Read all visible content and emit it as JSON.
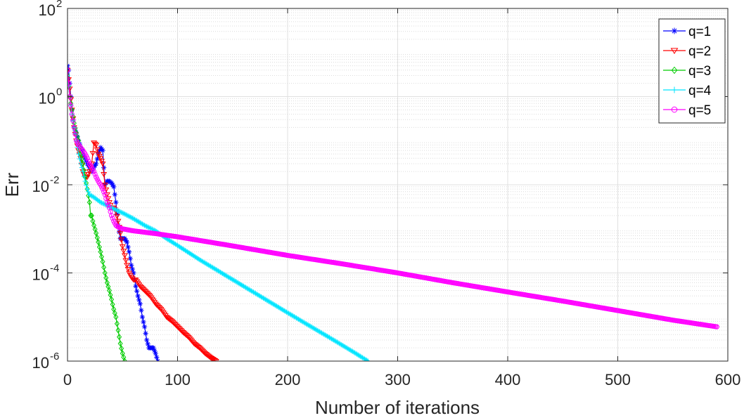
{
  "chart_data": {
    "type": "line",
    "title": "",
    "xlabel": "Number of iterations",
    "ylabel": "Err",
    "xlim": [
      0,
      600
    ],
    "ylim": [
      1e-06,
      100
    ],
    "yscale": "log",
    "grid": true,
    "minor_grid": true,
    "legend_position": "top-right",
    "x_ticks": [
      0,
      100,
      200,
      300,
      400,
      500,
      600
    ],
    "x_tick_labels": [
      "0",
      "100",
      "200",
      "300",
      "400",
      "500",
      "600"
    ],
    "y_ticks": [
      1e-06,
      0.0001,
      0.01,
      1,
      100
    ],
    "y_tick_labels": [
      {
        "base": "10",
        "exp": "-6"
      },
      {
        "base": "10",
        "exp": "-4"
      },
      {
        "base": "10",
        "exp": "-2"
      },
      {
        "base": "10",
        "exp": "0"
      },
      {
        "base": "10",
        "exp": "2"
      }
    ],
    "series": [
      {
        "name": "q=1",
        "color": "#0000ff",
        "marker": "asterisk",
        "points": [
          [
            0,
            5
          ],
          [
            1,
            4
          ],
          [
            2,
            2
          ],
          [
            3,
            1
          ],
          [
            4,
            0.5
          ],
          [
            5,
            0.3
          ],
          [
            6,
            0.2
          ],
          [
            8,
            0.15
          ],
          [
            10,
            0.1
          ],
          [
            12,
            0.07
          ],
          [
            14,
            0.05
          ],
          [
            16,
            0.04
          ],
          [
            18,
            0.03
          ],
          [
            20,
            0.025
          ],
          [
            22,
            0.02
          ],
          [
            24,
            0.025
          ],
          [
            26,
            0.03
          ],
          [
            28,
            0.05
          ],
          [
            30,
            0.07
          ],
          [
            32,
            0.06
          ],
          [
            34,
            0.01
          ],
          [
            36,
            0.012
          ],
          [
            38,
            0.012
          ],
          [
            40,
            0.011
          ],
          [
            42,
            0.009
          ],
          [
            44,
            0.004
          ],
          [
            46,
            0.0012
          ],
          [
            48,
            0.0006
          ],
          [
            50,
            0.0006
          ],
          [
            52,
            0.0006
          ],
          [
            54,
            0.0005
          ],
          [
            56,
            0.0003
          ],
          [
            58,
            0.00015
          ],
          [
            60,
            0.0001
          ],
          [
            62,
            5e-05
          ],
          [
            64,
            3e-05
          ],
          [
            66,
            2e-05
          ],
          [
            68,
            1e-05
          ],
          [
            70,
            6e-06
          ],
          [
            72,
            3e-06
          ],
          [
            74,
            2e-06
          ],
          [
            76,
            2e-06
          ],
          [
            78,
            2e-06
          ],
          [
            80,
            1.5e-06
          ],
          [
            82,
            1e-06
          ]
        ]
      },
      {
        "name": "q=2",
        "color": "#ff0000",
        "marker": "triangle-down",
        "points": [
          [
            0,
            4
          ],
          [
            2,
            1.5
          ],
          [
            4,
            0.5
          ],
          [
            6,
            0.2
          ],
          [
            8,
            0.1
          ],
          [
            10,
            0.06
          ],
          [
            12,
            0.04
          ],
          [
            14,
            0.02
          ],
          [
            16,
            0.015
          ],
          [
            18,
            0.015
          ],
          [
            20,
            0.02
          ],
          [
            22,
            0.03
          ],
          [
            24,
            0.09
          ],
          [
            26,
            0.08
          ],
          [
            28,
            0.05
          ],
          [
            30,
            0.04
          ],
          [
            32,
            0.03
          ],
          [
            34,
            0.01
          ],
          [
            36,
            0.006
          ],
          [
            38,
            0.004
          ],
          [
            40,
            0.003
          ],
          [
            42,
            0.003
          ],
          [
            44,
            0.0025
          ],
          [
            46,
            0.0015
          ],
          [
            48,
            0.0008
          ],
          [
            50,
            0.0004
          ],
          [
            52,
            0.00025
          ],
          [
            54,
            0.00015
          ],
          [
            56,
            0.0001
          ],
          [
            58,
            8e-05
          ],
          [
            60,
            7e-05
          ],
          [
            62,
            7e-05
          ],
          [
            66,
            5e-05
          ],
          [
            70,
            4e-05
          ],
          [
            75,
            3e-05
          ],
          [
            80,
            2e-05
          ],
          [
            85,
            1.5e-05
          ],
          [
            90,
            1e-05
          ],
          [
            95,
            8e-06
          ],
          [
            100,
            6e-06
          ],
          [
            105,
            4.5e-06
          ],
          [
            110,
            3.5e-06
          ],
          [
            115,
            2.5e-06
          ],
          [
            120,
            2e-06
          ],
          [
            125,
            1.5e-06
          ],
          [
            130,
            1.2e-06
          ],
          [
            135,
            1e-06
          ]
        ]
      },
      {
        "name": "q=3",
        "color": "#00cc00",
        "marker": "diamond",
        "points": [
          [
            0,
            3
          ],
          [
            2,
            1
          ],
          [
            4,
            0.5
          ],
          [
            6,
            0.25
          ],
          [
            8,
            0.15
          ],
          [
            10,
            0.1
          ],
          [
            12,
            0.05
          ],
          [
            14,
            0.03
          ],
          [
            16,
            0.015
          ],
          [
            18,
            0.008
          ],
          [
            20,
            0.004
          ],
          [
            21,
            0.002
          ],
          [
            22,
            0.002
          ],
          [
            23,
            0.0015
          ],
          [
            24,
            0.0012
          ],
          [
            26,
            0.0008
          ],
          [
            28,
            0.0005
          ],
          [
            30,
            0.0003
          ],
          [
            32,
            0.00018
          ],
          [
            34,
            0.0001
          ],
          [
            36,
            6e-05
          ],
          [
            38,
            4e-05
          ],
          [
            40,
            2.5e-05
          ],
          [
            42,
            1.5e-05
          ],
          [
            44,
            1e-05
          ],
          [
            46,
            5e-06
          ],
          [
            48,
            2.5e-06
          ],
          [
            50,
            1.5e-06
          ],
          [
            52,
            1e-06
          ]
        ]
      },
      {
        "name": "q=4",
        "color": "#00e5ff",
        "marker": "plus",
        "points": [
          [
            0,
            3
          ],
          [
            2,
            1
          ],
          [
            4,
            0.4
          ],
          [
            6,
            0.2
          ],
          [
            8,
            0.1
          ],
          [
            10,
            0.05
          ],
          [
            12,
            0.03
          ],
          [
            14,
            0.02
          ],
          [
            16,
            0.012
          ],
          [
            18,
            0.008
          ],
          [
            20,
            0.006
          ],
          [
            25,
            0.005
          ],
          [
            30,
            0.004
          ],
          [
            35,
            0.0035
          ],
          [
            40,
            0.003
          ],
          [
            50,
            0.0023
          ],
          [
            60,
            0.0017
          ],
          [
            70,
            0.0012
          ],
          [
            80,
            0.0009
          ],
          [
            90,
            0.0006
          ],
          [
            100,
            0.00042
          ],
          [
            120,
            0.0002
          ],
          [
            140,
            0.0001
          ],
          [
            160,
            5e-05
          ],
          [
            180,
            2.5e-05
          ],
          [
            200,
            1.25e-05
          ],
          [
            220,
            6.3e-06
          ],
          [
            240,
            3.2e-06
          ],
          [
            260,
            1.6e-06
          ],
          [
            273,
            1e-06
          ]
        ]
      },
      {
        "name": "q=5",
        "color": "#ff00ff",
        "marker": "circle",
        "points": [
          [
            0,
            4
          ],
          [
            2,
            1
          ],
          [
            4,
            0.4
          ],
          [
            6,
            0.2
          ],
          [
            8,
            0.1
          ],
          [
            10,
            0.08
          ],
          [
            12,
            0.07
          ],
          [
            14,
            0.06
          ],
          [
            16,
            0.05
          ],
          [
            18,
            0.04
          ],
          [
            20,
            0.03
          ],
          [
            22,
            0.025
          ],
          [
            24,
            0.02
          ],
          [
            26,
            0.015
          ],
          [
            28,
            0.012
          ],
          [
            30,
            0.01
          ],
          [
            32,
            0.008
          ],
          [
            34,
            0.006
          ],
          [
            36,
            0.004
          ],
          [
            38,
            0.003
          ],
          [
            40,
            0.002
          ],
          [
            42,
            0.0015
          ],
          [
            44,
            0.0012
          ],
          [
            46,
            0.0011
          ],
          [
            50,
            0.001
          ],
          [
            60,
            0.0009
          ],
          [
            80,
            0.00078
          ],
          [
            100,
            0.00066
          ],
          [
            150,
            0.00041
          ],
          [
            200,
            0.00025
          ],
          [
            250,
            0.00016
          ],
          [
            300,
            0.0001
          ],
          [
            350,
            6e-05
          ],
          [
            400,
            3.7e-05
          ],
          [
            450,
            2.3e-05
          ],
          [
            500,
            1.4e-05
          ],
          [
            550,
            8.5e-06
          ],
          [
            590,
            6e-06
          ]
        ]
      }
    ]
  }
}
